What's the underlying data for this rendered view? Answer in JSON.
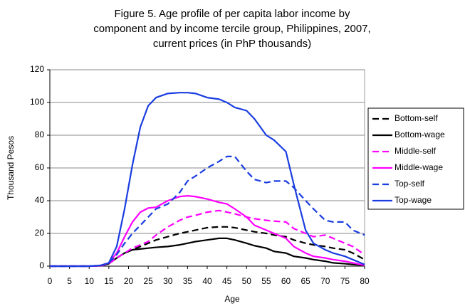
{
  "chart_data": {
    "type": "line",
    "title": "Figure 5. Age profile of per capita labor income by component and by income tercile group, Philippines, 2007, current prices (in PhP thousands)",
    "title_lines": [
      "Figure 5. Age profile of per capita labor income by",
      "component and by income tercile group, Philippines, 2007,",
      "current prices (in PhP thousands)"
    ],
    "x_label": "Age",
    "y_label": "Thousand Pesos",
    "x": [
      0,
      5,
      10,
      13,
      15,
      17,
      19,
      21,
      23,
      25,
      27,
      30,
      33,
      35,
      37,
      40,
      43,
      45,
      47,
      50,
      52,
      55,
      57,
      60,
      62,
      65,
      67,
      70,
      72,
      75,
      77,
      80
    ],
    "series": [
      {
        "name": "Bottom-self",
        "color": "#000000",
        "style": "dashed",
        "values": [
          0,
          0,
          0,
          0.2,
          1.5,
          5,
          8,
          10,
          12,
          14,
          16,
          18,
          20,
          21,
          22,
          23.5,
          24,
          24,
          23.5,
          22,
          21,
          20,
          19,
          18,
          16,
          14,
          13,
          12,
          11,
          10,
          8,
          4
        ]
      },
      {
        "name": "Bottom-wage",
        "color": "#000000",
        "style": "solid",
        "values": [
          0,
          0,
          0,
          0.2,
          1.5,
          5,
          8,
          10,
          10.5,
          11,
          11.5,
          12,
          13,
          14,
          15,
          16,
          17,
          17,
          16,
          14,
          12.5,
          11,
          9,
          8,
          6,
          5,
          4,
          3,
          2,
          1.5,
          1,
          0.5
        ]
      },
      {
        "name": "Middle-self",
        "color": "#ff00ff",
        "style": "dashed",
        "values": [
          0,
          0,
          0,
          0.3,
          1.5,
          5,
          8,
          11,
          13,
          15,
          19,
          24,
          28,
          30,
          31,
          33,
          34,
          33,
          32,
          30,
          29,
          28,
          27.5,
          27,
          23,
          20,
          18,
          19,
          17,
          14,
          12,
          7
        ]
      },
      {
        "name": "Middle-wage",
        "color": "#ff00ff",
        "style": "solid",
        "values": [
          0,
          0,
          0,
          0.3,
          2,
          8,
          18,
          27,
          33,
          35.5,
          36,
          40,
          42.5,
          43,
          42.5,
          41,
          39,
          38,
          35,
          30,
          25,
          22,
          20,
          17,
          12,
          8,
          6,
          5,
          4,
          3,
          2,
          0.5
        ]
      },
      {
        "name": "Top-self",
        "color": "#1a3de0",
        "style": "dashed",
        "values": [
          0,
          0,
          0,
          0.5,
          2,
          7,
          14,
          20,
          25,
          30,
          35,
          38,
          45,
          52,
          55,
          60,
          64,
          67,
          67,
          58,
          53,
          51,
          52,
          52,
          48,
          40,
          35,
          28,
          27,
          27,
          22,
          19
        ]
      },
      {
        "name": "Top-wage",
        "color": "#1a3de0",
        "style": "solid",
        "values": [
          0,
          0,
          0,
          0.5,
          2,
          12,
          35,
          62,
          85,
          98,
          103,
          105.5,
          106,
          106,
          105.5,
          103,
          102,
          100,
          97,
          95,
          90,
          80,
          77,
          70,
          50,
          22,
          14,
          10,
          8,
          6,
          4,
          1
        ]
      }
    ],
    "xlim": [
      0,
      80
    ],
    "xticks": [
      0,
      5,
      10,
      15,
      20,
      25,
      30,
      35,
      40,
      45,
      50,
      55,
      60,
      65,
      70,
      75,
      80
    ],
    "ylim": [
      0,
      120
    ],
    "yticks": [
      0,
      20,
      40,
      60,
      80,
      100,
      120
    ],
    "grid": true,
    "legend": "right"
  }
}
